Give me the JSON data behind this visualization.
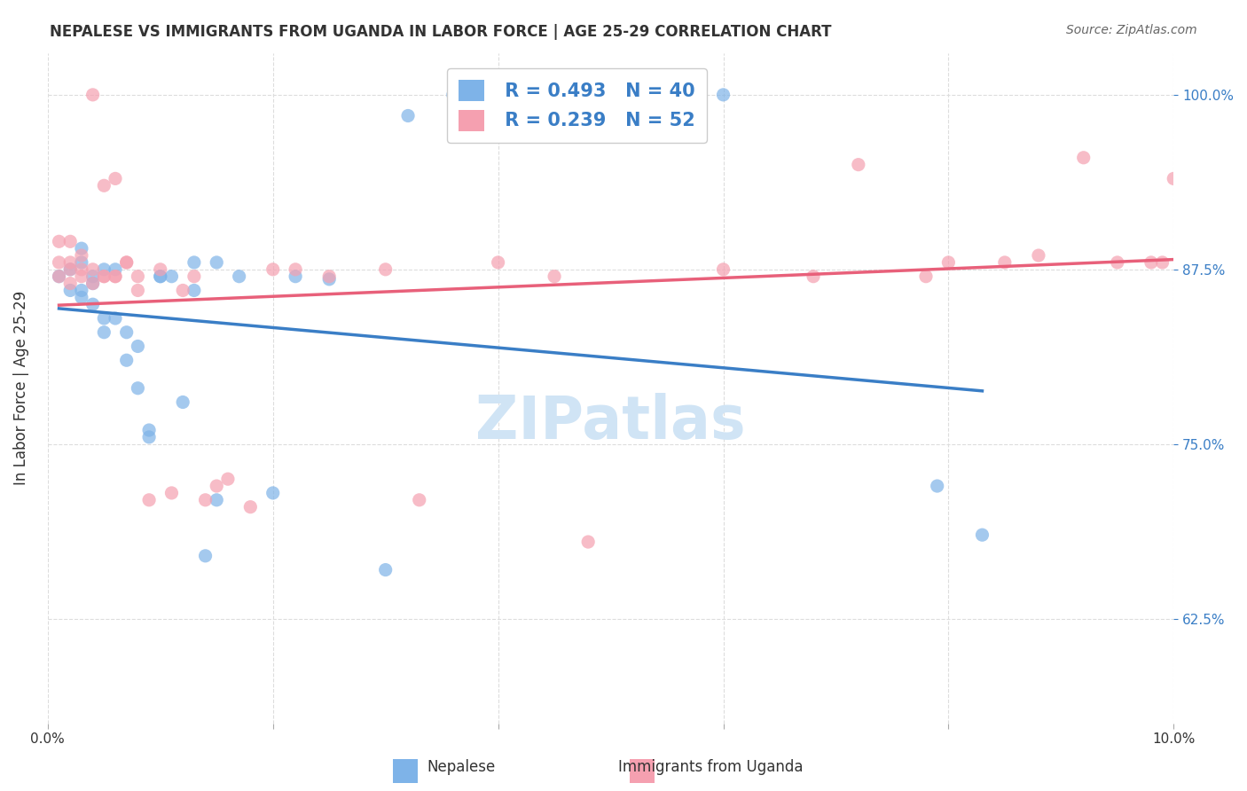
{
  "title": "NEPALESE VS IMMIGRANTS FROM UGANDA IN LABOR FORCE | AGE 25-29 CORRELATION CHART",
  "source": "Source: ZipAtlas.com",
  "xlabel_bottom": "",
  "ylabel": "In Labor Force | Age 25-29",
  "xlim": [
    0.0,
    0.1
  ],
  "ylim": [
    0.55,
    1.03
  ],
  "xticks": [
    0.0,
    0.02,
    0.04,
    0.06,
    0.08,
    0.1
  ],
  "xtick_labels": [
    "0.0%",
    "",
    "",
    "",
    "",
    "10.0%"
  ],
  "ytick_labels_right": [
    "62.5%",
    "75.0%",
    "87.5%",
    "100.0%"
  ],
  "yticks_right": [
    0.625,
    0.75,
    0.875,
    1.0
  ],
  "legend_r1": "R = 0.493",
  "legend_n1": "N = 40",
  "legend_r2": "R = 0.239",
  "legend_n2": "N = 52",
  "blue_color": "#7EB3E8",
  "pink_color": "#F5A0B0",
  "blue_line_color": "#3A7EC6",
  "pink_line_color": "#E8607A",
  "watermark": "ZIPatlas",
  "watermark_color": "#D0E4F5",
  "blue_scatter_x": [
    0.001,
    0.002,
    0.002,
    0.003,
    0.003,
    0.003,
    0.003,
    0.004,
    0.004,
    0.004,
    0.005,
    0.005,
    0.005,
    0.006,
    0.006,
    0.007,
    0.007,
    0.008,
    0.008,
    0.009,
    0.009,
    0.01,
    0.01,
    0.011,
    0.012,
    0.013,
    0.013,
    0.014,
    0.015,
    0.015,
    0.017,
    0.02,
    0.022,
    0.025,
    0.03,
    0.032,
    0.036,
    0.06,
    0.079,
    0.083
  ],
  "blue_scatter_y": [
    0.87,
    0.86,
    0.875,
    0.855,
    0.88,
    0.89,
    0.86,
    0.85,
    0.87,
    0.865,
    0.84,
    0.83,
    0.875,
    0.875,
    0.84,
    0.81,
    0.83,
    0.82,
    0.79,
    0.755,
    0.76,
    0.87,
    0.87,
    0.87,
    0.78,
    0.88,
    0.86,
    0.67,
    0.71,
    0.88,
    0.87,
    0.715,
    0.87,
    0.868,
    0.66,
    0.985,
    1.0,
    1.0,
    0.72,
    0.685
  ],
  "pink_scatter_x": [
    0.001,
    0.001,
    0.001,
    0.002,
    0.002,
    0.002,
    0.002,
    0.003,
    0.003,
    0.003,
    0.004,
    0.004,
    0.004,
    0.005,
    0.005,
    0.005,
    0.006,
    0.006,
    0.006,
    0.007,
    0.007,
    0.008,
    0.008,
    0.009,
    0.01,
    0.011,
    0.012,
    0.013,
    0.014,
    0.015,
    0.016,
    0.018,
    0.02,
    0.022,
    0.025,
    0.03,
    0.033,
    0.04,
    0.045,
    0.048,
    0.06,
    0.068,
    0.072,
    0.078,
    0.08,
    0.085,
    0.088,
    0.092,
    0.095,
    0.098,
    0.099,
    0.1
  ],
  "pink_scatter_y": [
    0.895,
    0.88,
    0.87,
    0.875,
    0.865,
    0.895,
    0.88,
    0.87,
    0.885,
    0.875,
    0.865,
    0.875,
    1.0,
    0.87,
    0.87,
    0.935,
    0.87,
    0.87,
    0.94,
    0.88,
    0.88,
    0.86,
    0.87,
    0.71,
    0.875,
    0.715,
    0.86,
    0.87,
    0.71,
    0.72,
    0.725,
    0.705,
    0.875,
    0.875,
    0.87,
    0.875,
    0.71,
    0.88,
    0.87,
    0.68,
    0.875,
    0.87,
    0.95,
    0.87,
    0.88,
    0.88,
    0.885,
    0.955,
    0.88,
    0.88,
    0.88,
    0.94
  ],
  "background_color": "#FFFFFF",
  "grid_color": "#DDDDDD"
}
